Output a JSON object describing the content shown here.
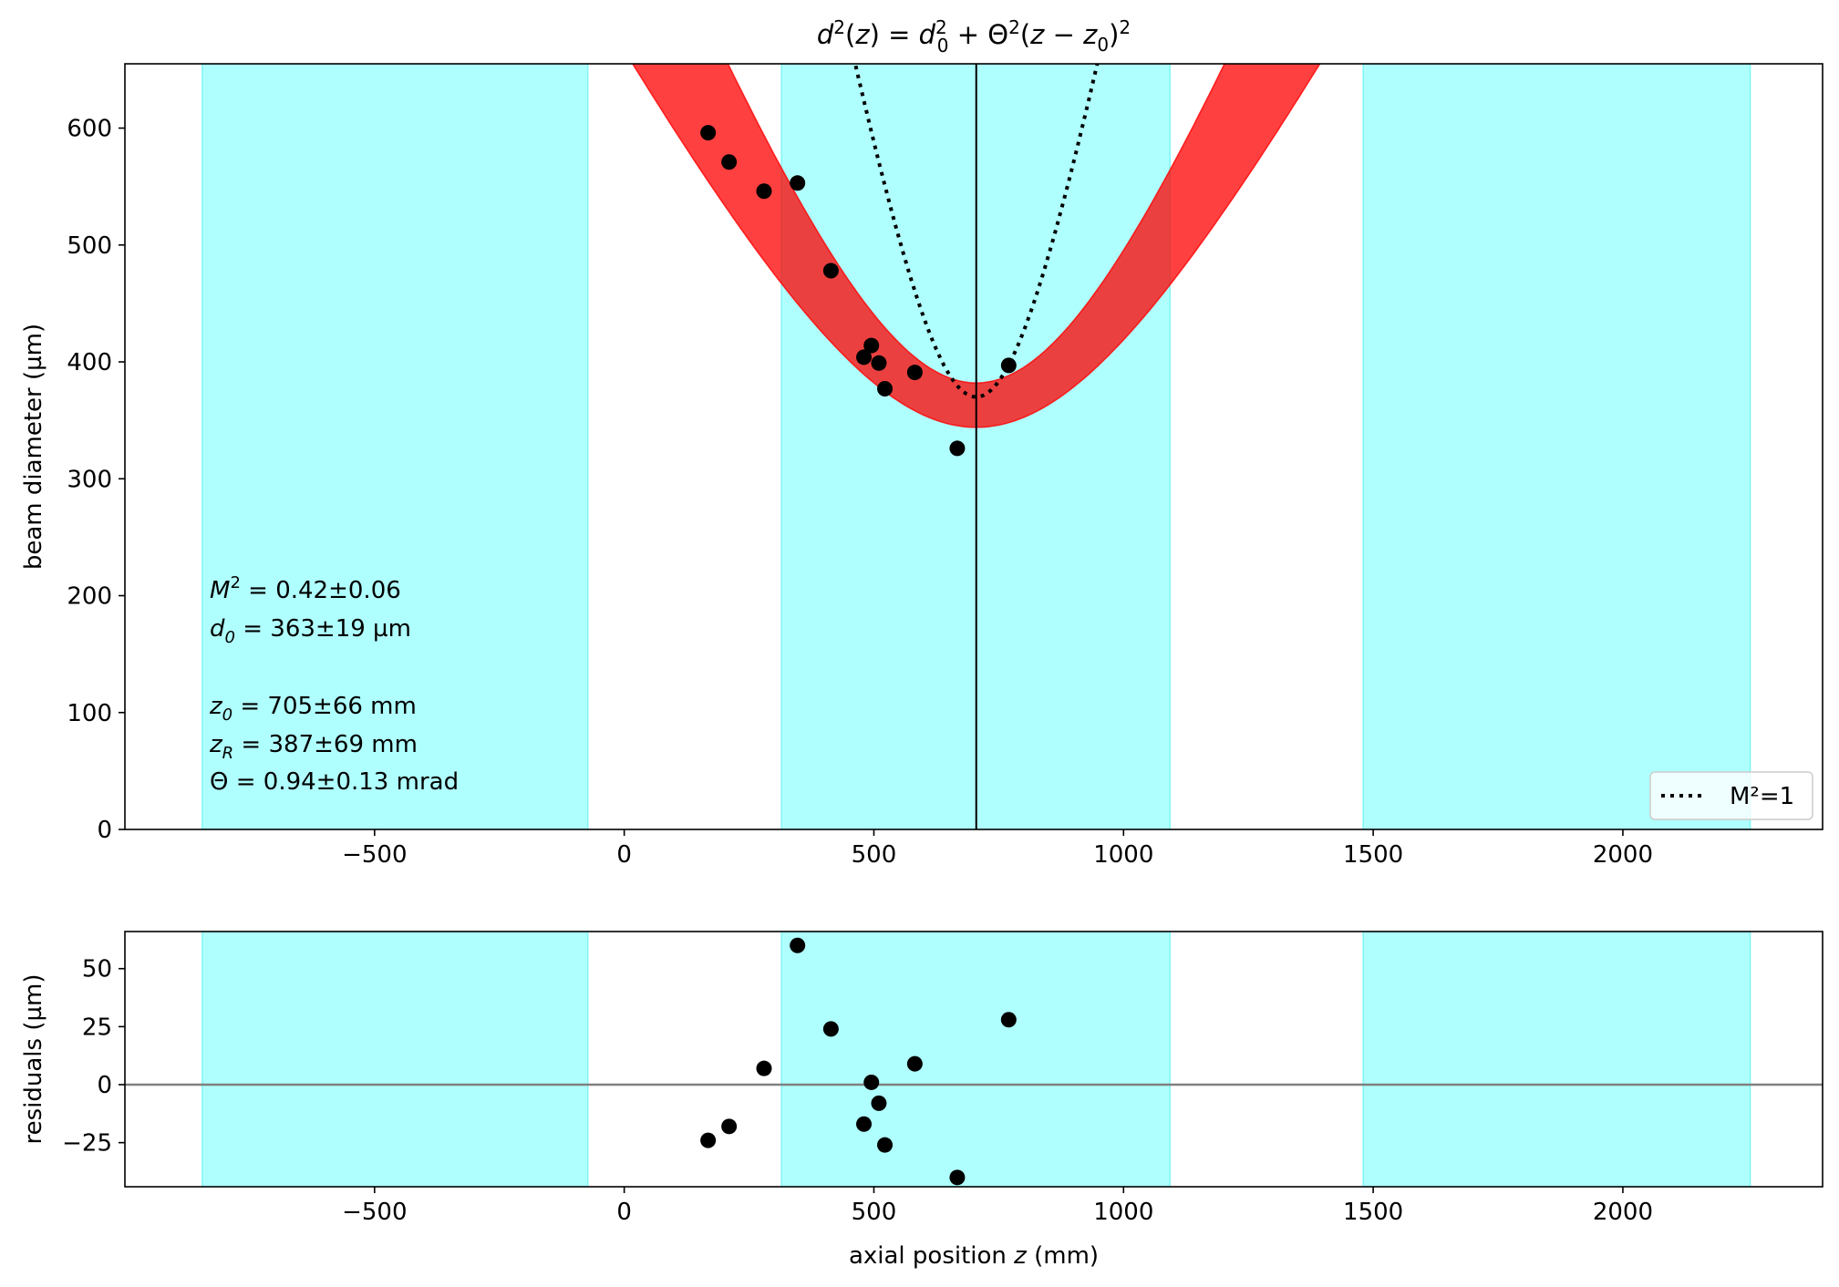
{
  "chart_data": [
    {
      "type": "scatter",
      "title": "d²(z) = d₀² + Θ²(z − z₀)²",
      "xlabel": "",
      "ylabel": "beam diameter (µm)",
      "xlim": [
        -1000,
        2400
      ],
      "ylim": [
        0,
        655
      ],
      "x_ticks": [
        -500,
        0,
        500,
        1000,
        1500,
        2000
      ],
      "y_ticks": [
        0,
        100,
        200,
        300,
        400,
        500,
        600
      ],
      "grid": false,
      "shaded_regions": [
        [
          -845,
          -73
        ],
        [
          315,
          1093
        ],
        [
          1480,
          2255
        ]
      ],
      "shaded_color": "#b0ffff",
      "band_color": "#ff0000",
      "marker_color": "#000000",
      "vline_x": 705,
      "fit": {
        "z0": 705,
        "d0": 363,
        "theta_mrad": 0.94,
        "dd0": 19,
        "dtheta": 0.13
      },
      "reference_curve": {
        "name": "M²=1",
        "z0": 705,
        "d0": 370,
        "theta_mrad": 2.23,
        "style": "dotted"
      },
      "points": [
        {
          "x": 168,
          "y": 596
        },
        {
          "x": 210,
          "y": 571
        },
        {
          "x": 280,
          "y": 546
        },
        {
          "x": 347,
          "y": 553
        },
        {
          "x": 414,
          "y": 478
        },
        {
          "x": 480,
          "y": 404
        },
        {
          "x": 495,
          "y": 414
        },
        {
          "x": 510,
          "y": 399
        },
        {
          "x": 522,
          "y": 377
        },
        {
          "x": 582,
          "y": 391
        },
        {
          "x": 667,
          "y": 326
        },
        {
          "x": 770,
          "y": 397
        }
      ],
      "annotations": [
        {
          "label": "M",
          "sup": "2",
          "sub": "",
          "value": " = 0.42±0.06"
        },
        {
          "label": "d",
          "sup": "",
          "sub": "0",
          "value": " = 363±19 µm"
        },
        {
          "label": "z",
          "sup": "",
          "sub": "0",
          "value": "  = 705±66 mm"
        },
        {
          "label": "z",
          "sup": "",
          "sub": "R",
          "value": "  = 387±69 mm"
        },
        {
          "label": "Θ",
          "sup": "",
          "sub": "",
          "value": "  = 0.94±0.13 mrad"
        }
      ],
      "legend": {
        "placement": "lower-right",
        "entries": [
          {
            "label": "M²=1",
            "style": "dotted"
          }
        ]
      }
    },
    {
      "type": "scatter",
      "title": "",
      "xlabel": "axial position z (mm)",
      "ylabel": "residuals (µm)",
      "xlim": [
        -1000,
        2400
      ],
      "ylim": [
        -44,
        66
      ],
      "x_ticks": [
        -500,
        0,
        500,
        1000,
        1500,
        2000
      ],
      "y_ticks": [
        -25,
        0,
        25,
        50
      ],
      "hline_y": 0,
      "hline_color": "#808080",
      "shaded_regions": [
        [
          -845,
          -73
        ],
        [
          315,
          1093
        ],
        [
          1480,
          2255
        ]
      ],
      "points": [
        {
          "x": 168,
          "y": -24
        },
        {
          "x": 210,
          "y": -18
        },
        {
          "x": 280,
          "y": 7
        },
        {
          "x": 347,
          "y": 60
        },
        {
          "x": 414,
          "y": 24
        },
        {
          "x": 480,
          "y": -17
        },
        {
          "x": 495,
          "y": 1
        },
        {
          "x": 510,
          "y": -8
        },
        {
          "x": 522,
          "y": -26
        },
        {
          "x": 582,
          "y": 9
        },
        {
          "x": 667,
          "y": -40
        },
        {
          "x": 770,
          "y": 28
        }
      ]
    }
  ]
}
